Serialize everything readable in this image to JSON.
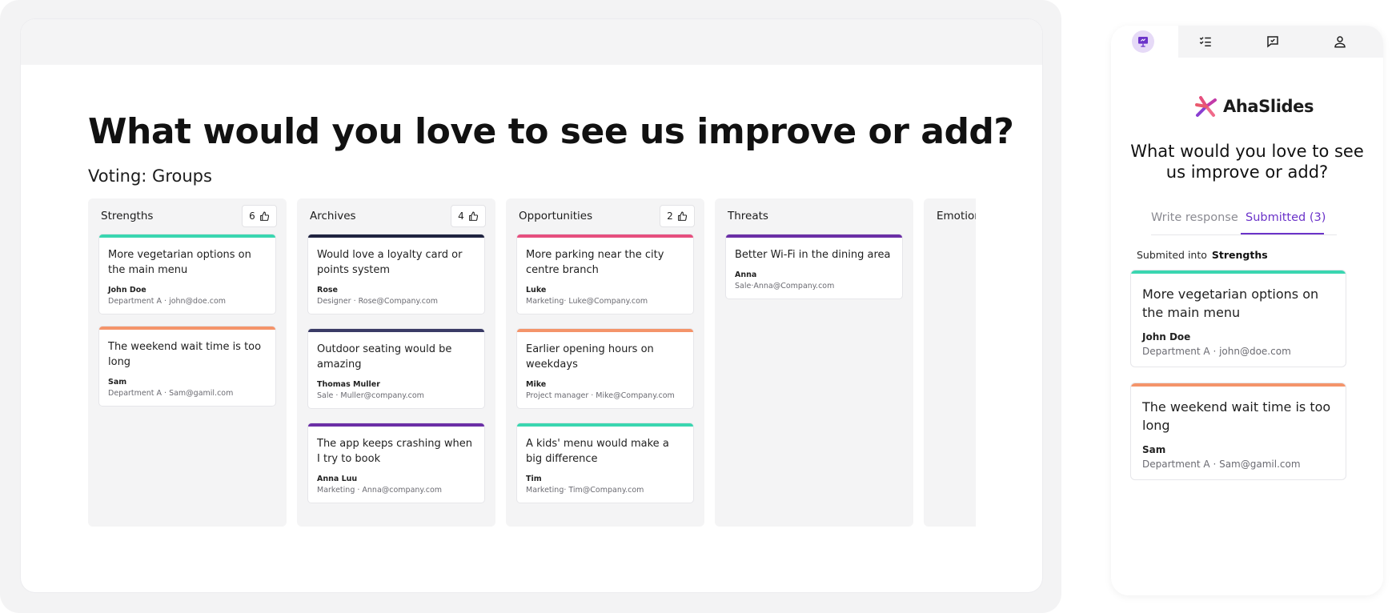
{
  "presenter": {
    "title": "What would you love to see us improve or add?",
    "subtitle": "Voting: Groups",
    "columns": [
      {
        "name": "Strengths",
        "votes": "6",
        "cards": [
          {
            "text": "More vegetarian options on the main menu",
            "author": "John Doe",
            "meta": "Department A · john@doe.com",
            "color": "#3ad6b0"
          },
          {
            "text": "The weekend wait time is too long",
            "author": "Sam",
            "meta": "Department A · Sam@gamil.com",
            "color": "#f4946a"
          }
        ]
      },
      {
        "name": "Archives",
        "votes": "4",
        "cards": [
          {
            "text": "Would love a loyalty card or points system",
            "author": "Rose",
            "meta": "Designer · Rose@Company.com",
            "color": "#1f2340"
          },
          {
            "text": "Outdoor seating would be amazing",
            "author": "Thomas Muller",
            "meta": "Sale · Muller@company.com",
            "color": "#3a3b66"
          },
          {
            "text": "The app keeps crashing when I try to book",
            "author": "Anna Luu",
            "meta": "Marketing · Anna@company.com",
            "color": "#6b2fa6"
          }
        ]
      },
      {
        "name": "Opportunities",
        "votes": "2",
        "cards": [
          {
            "text": "More parking near the city centre branch",
            "author": "Luke",
            "meta": "Marketing· Luke@Company.com",
            "color": "#e64f7e"
          },
          {
            "text": "Earlier opening hours on weekdays",
            "author": "Mike",
            "meta": "Project manager · Mike@Company.com",
            "color": "#f4946a"
          },
          {
            "text": "A kids' menu would make a big difference",
            "author": "Tim",
            "meta": "Marketing· Tim@Company.com",
            "color": "#3ad6b0"
          }
        ]
      },
      {
        "name": "Threats",
        "votes": "",
        "cards": [
          {
            "text": "Better Wi-Fi in the dining area",
            "author": "Anna",
            "meta": "Sale·Anna@Company.com",
            "color": "#6b2fa6"
          }
        ]
      },
      {
        "name": "Emotior",
        "votes": "",
        "cards": []
      }
    ]
  },
  "audience": {
    "logo_text": "AhaSlides",
    "question": "What would you love to see us improve or add?",
    "tabs": {
      "write": "Write response",
      "submitted": "Submitted (3)"
    },
    "submitted_into_label": "Submited into",
    "submitted_into_group": "Strengths",
    "nav_icons": [
      "presentation-icon",
      "checklist-icon",
      "chat-icon",
      "user-icon"
    ],
    "accent": "#6b33c9",
    "cards": [
      {
        "text": "More vegetarian options on the main menu",
        "author": "John Doe",
        "meta": "Department A · john@doe.com",
        "color": "#3ad6b0"
      },
      {
        "text": "The weekend wait time is too long",
        "author": "Sam",
        "meta": "Department A · Sam@gamil.com",
        "color": "#f4946a"
      }
    ]
  }
}
